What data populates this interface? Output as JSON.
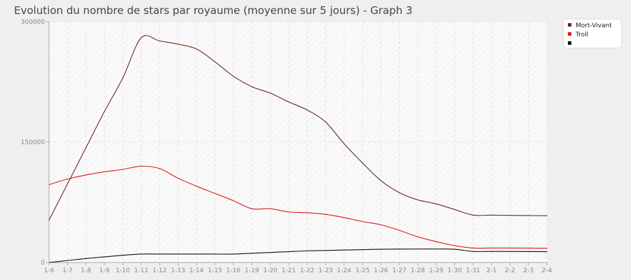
{
  "chart_data": {
    "type": "line",
    "title": "Evolution du nombre de stars par royaume (moyenne sur 5 jours) - Graph 3",
    "categories": [
      "1-6",
      "1-7",
      "1-8",
      "1-9",
      "1-10",
      "1-11",
      "1-12",
      "1-13",
      "1-14",
      "1-15",
      "1-16",
      "1-19",
      "1-20",
      "1-21",
      "1-22",
      "1-23",
      "1-24",
      "1-25",
      "1-26",
      "1-27",
      "1-28",
      "1-29",
      "1-30",
      "1-31",
      "2-1",
      "2-2",
      "2-3",
      "2-4"
    ],
    "ylim": [
      0,
      300000
    ],
    "yticks": [
      "0",
      "150000",
      "300000"
    ],
    "ytick_values": [
      0,
      150000,
      300000
    ],
    "grid": true,
    "legend_position": "top-right",
    "series": [
      {
        "name": "Mort-Vivant",
        "color": "#6b2a1a",
        "values": [
          53000,
          98000,
          143000,
          188000,
          230000,
          280000,
          276000,
          272000,
          266000,
          250000,
          232000,
          219000,
          211000,
          200000,
          190000,
          175000,
          148000,
          124000,
          102000,
          87000,
          78000,
          73000,
          66000,
          59000,
          59000,
          58700,
          58500,
          58300
        ]
      },
      {
        "name": "Troll",
        "color": "#e0191b",
        "values": [
          97000,
          104000,
          109000,
          113000,
          116000,
          120000,
          117000,
          105000,
          95000,
          86000,
          77000,
          67000,
          67000,
          63000,
          62000,
          60000,
          56000,
          51000,
          47000,
          40000,
          32000,
          26000,
          21000,
          18000,
          18000,
          18000,
          17900,
          17800
        ]
      },
      {
        "name": "",
        "color": "#111111",
        "values": [
          0,
          2500,
          5000,
          7000,
          9000,
          10500,
          10500,
          10500,
          10500,
          10500,
          10500,
          11500,
          12500,
          13500,
          14500,
          15000,
          15500,
          16000,
          16500,
          16700,
          16800,
          16800,
          16500,
          13800,
          13800,
          13700,
          13600,
          13500
        ]
      }
    ]
  }
}
